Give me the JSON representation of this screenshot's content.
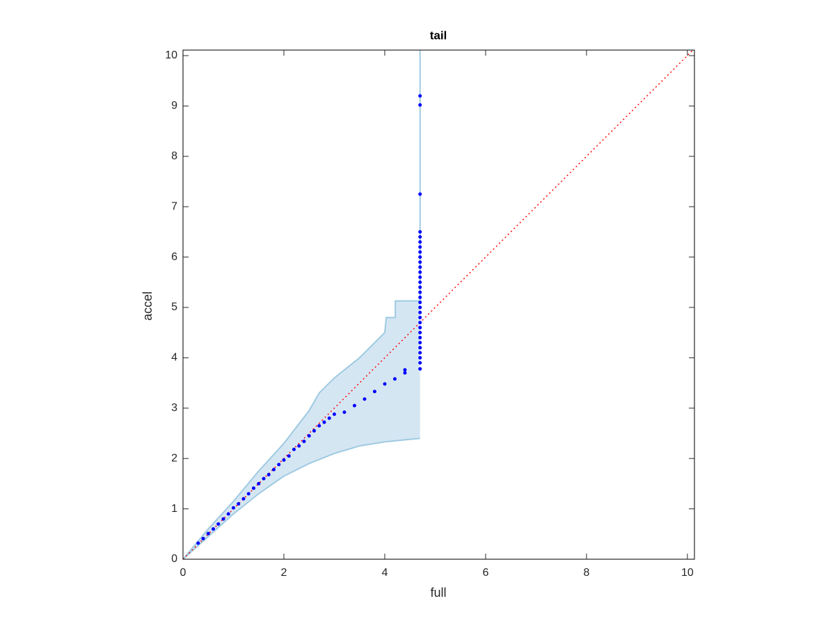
{
  "chart_data": {
    "type": "scatter",
    "title": "tail",
    "xlabel": "full",
    "ylabel": "accel",
    "xlim": [
      0,
      10.14
    ],
    "ylim": [
      0,
      10.11
    ],
    "xticks": [
      0,
      2,
      4,
      6,
      8,
      10
    ],
    "yticks": [
      0,
      1,
      2,
      3,
      4,
      5,
      6,
      7,
      8,
      9,
      10
    ],
    "series": [
      {
        "color": "#0000ff",
        "x": [
          0.3,
          0.4,
          0.5,
          0.6,
          0.7,
          0.8,
          0.9,
          1.0,
          1.1,
          1.2,
          1.3,
          1.4,
          1.5,
          1.6,
          1.7,
          1.8,
          1.9,
          2.0,
          2.1,
          2.2,
          2.3,
          2.4,
          2.5,
          2.6,
          2.7,
          2.8,
          2.9,
          3.0,
          3.2,
          3.4,
          3.6,
          3.8,
          4.0,
          4.2,
          4.4,
          4.4,
          4.7,
          4.7,
          4.7,
          4.7,
          4.7,
          4.7,
          4.7,
          4.7,
          4.7,
          4.7,
          4.7,
          4.7,
          4.7,
          4.7,
          4.7,
          4.7,
          4.7,
          4.7,
          4.7,
          4.7,
          4.7,
          4.7,
          4.7,
          4.7,
          4.7,
          4.7,
          4.7,
          4.7,
          4.7,
          4.7,
          4.7
        ],
        "values": [
          0.32,
          0.41,
          0.51,
          0.6,
          0.7,
          0.8,
          0.9,
          1.02,
          1.1,
          1.2,
          1.3,
          1.41,
          1.5,
          1.6,
          1.68,
          1.78,
          1.88,
          1.97,
          2.05,
          2.18,
          2.25,
          2.34,
          2.45,
          2.55,
          2.65,
          2.72,
          2.8,
          2.88,
          2.92,
          3.05,
          3.18,
          3.33,
          3.48,
          3.58,
          3.7,
          3.76,
          3.78,
          3.9,
          4.0,
          4.1,
          4.2,
          4.3,
          4.4,
          4.5,
          4.6,
          4.7,
          4.8,
          4.9,
          5.0,
          5.1,
          5.2,
          5.3,
          5.4,
          5.5,
          5.6,
          5.7,
          5.8,
          5.9,
          6.0,
          6.1,
          6.2,
          6.3,
          6.4,
          6.5,
          7.25,
          9.02,
          9.2
        ]
      }
    ],
    "band": {
      "color": "#9ecae1",
      "fill": "#d5e6f3",
      "x_upper": [
        0,
        0.5,
        1.0,
        1.5,
        2.0,
        2.5,
        2.7,
        3.0,
        3.5,
        3.8,
        4.0,
        4.03,
        4.21,
        4.21,
        4.7,
        4.7
      ],
      "upper": [
        0,
        0.6,
        1.15,
        1.75,
        2.3,
        2.95,
        3.3,
        3.6,
        4.0,
        4.3,
        4.5,
        4.8,
        4.8,
        5.13,
        5.13,
        10.11
      ],
      "x_lower": [
        0,
        0.5,
        1.0,
        1.5,
        2.0,
        2.5,
        3.0,
        3.5,
        4.0,
        4.5,
        4.7
      ],
      "lower": [
        0,
        0.45,
        0.9,
        1.3,
        1.65,
        1.9,
        2.1,
        2.25,
        2.33,
        2.38,
        2.4
      ]
    },
    "reference": {
      "color": "#ff0000",
      "x": [
        0,
        10.11
      ],
      "values": [
        0,
        10.11
      ]
    }
  }
}
